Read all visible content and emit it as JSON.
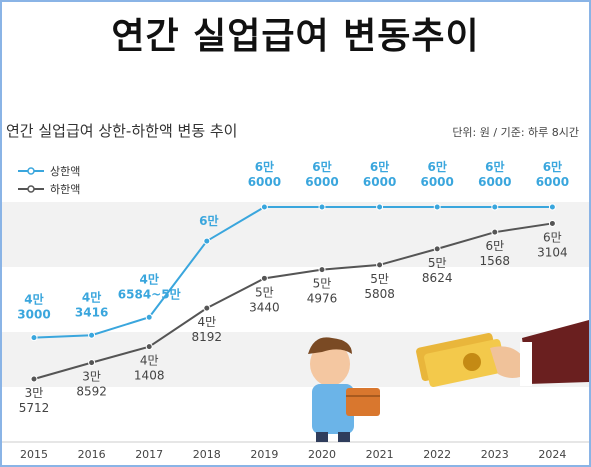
{
  "banner_title": "연간 실업급여 변동추이",
  "chart_data": {
    "type": "line",
    "title": "연간 실업급여 상한-하한액 변동 추이",
    "unit_note": "단위: 원 / 기준: 하루 8시간",
    "categories": [
      "2015",
      "2016",
      "2017",
      "2018",
      "2019",
      "2020",
      "2021",
      "2022",
      "2023",
      "2024"
    ],
    "series": [
      {
        "name": "상한액",
        "color": "#3aa6dd",
        "values": [
          43000,
          43416,
          46584,
          60000,
          66000,
          66000,
          66000,
          66000,
          66000,
          66000
        ],
        "labels": [
          [
            "4만",
            "3000"
          ],
          [
            "4만",
            "3416"
          ],
          [
            "4만",
            "6584~5만"
          ],
          [
            "6만",
            ""
          ],
          [
            "6만",
            "6000"
          ],
          [
            "6만",
            "6000"
          ],
          [
            "6만",
            "6000"
          ],
          [
            "6만",
            "6000"
          ],
          [
            "6만",
            "6000"
          ],
          [
            "6만",
            "6000"
          ]
        ]
      },
      {
        "name": "하한액",
        "color": "#555555",
        "values": [
          35712,
          38592,
          41408,
          48192,
          53440,
          54976,
          55808,
          58624,
          61568,
          63104
        ],
        "labels": [
          [
            "3만",
            "5712"
          ],
          [
            "3만",
            "8592"
          ],
          [
            "4만",
            "1408"
          ],
          [
            "4만",
            "8192"
          ],
          [
            "5만",
            "3440"
          ],
          [
            "5만",
            "4976"
          ],
          [
            "5만",
            "5808"
          ],
          [
            "5만",
            "8624"
          ],
          [
            "6만",
            "1568"
          ],
          [
            "6만",
            "3104"
          ]
        ]
      }
    ],
    "legend": "top-left",
    "grid": false
  }
}
